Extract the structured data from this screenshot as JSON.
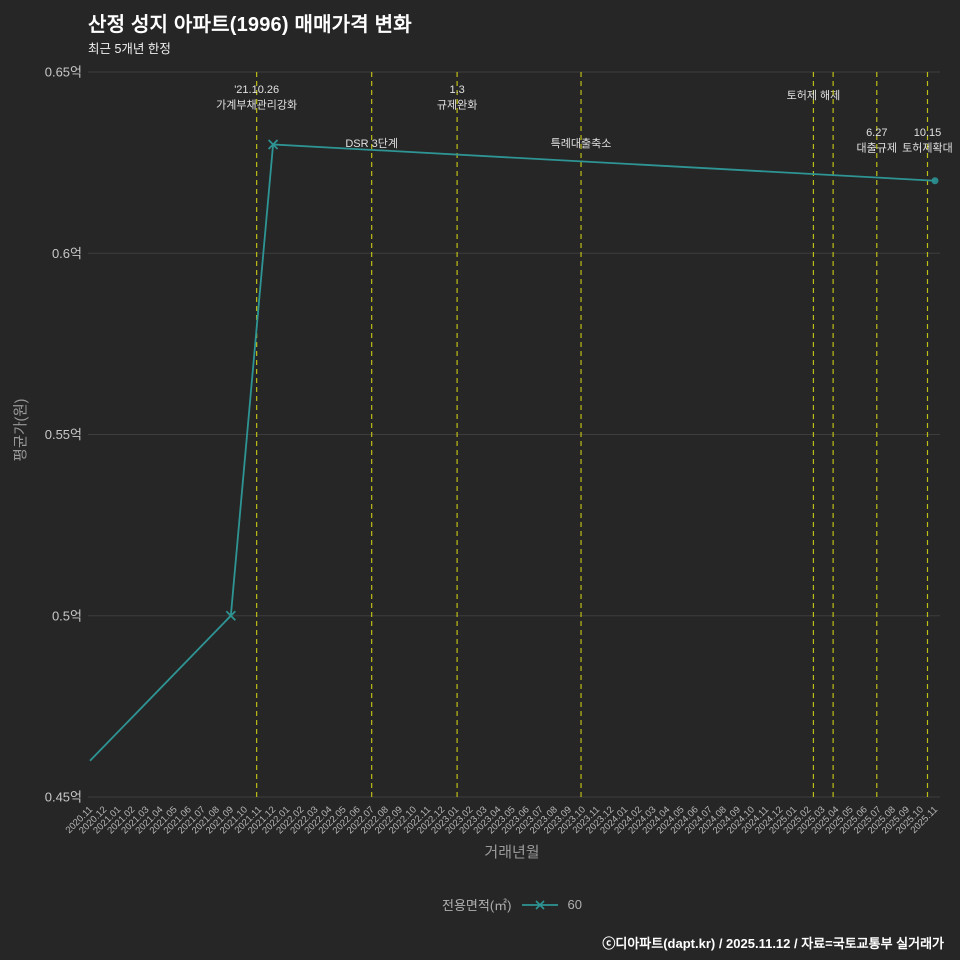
{
  "title": "산정 성지 아파트(1996) 매매가격 변화",
  "subtitle": "최근 5개년 한정",
  "footer": "ⓒ디아파트(dapt.kr) / 2025.11.12 / 자료=국토교통부 실거래가",
  "legend": {
    "label": "전용면적(㎡)",
    "series_name": "60"
  },
  "colors": {
    "background": "#262626",
    "line": "#2e9494",
    "event_line": "#bdbd17",
    "grid": "#3d3d3d",
    "title_text": "#ffffff",
    "tick_text": "#c8c8c8",
    "x_tick_text": "#b8b8b8",
    "axis_label_text": "#9a9a9a",
    "annotation_text": "#e0e0e0"
  },
  "chart_data": {
    "type": "line",
    "title": "산정 성지 아파트(1996) 매매가격 변화",
    "subtitle": "최근 5개년 한정",
    "xlabel": "거래년월",
    "ylabel": "평균가(원)",
    "ylim": [
      0.45,
      0.65
    ],
    "grid": "horizontal",
    "legend_position": "bottom-center",
    "y_ticks": [
      {
        "value": 0.65,
        "label": "0.65억"
      },
      {
        "value": 0.6,
        "label": "0.6억"
      },
      {
        "value": 0.55,
        "label": "0.55억"
      },
      {
        "value": 0.5,
        "label": "0.5억"
      },
      {
        "value": 0.45,
        "label": "0.45억"
      }
    ],
    "categories": [
      "2020.11",
      "2020.12",
      "2021.01",
      "2021.02",
      "2021.03",
      "2021.04",
      "2021.05",
      "2021.06",
      "2021.07",
      "2021.08",
      "2021.09",
      "2021.10",
      "2021.11",
      "2021.12",
      "2022.01",
      "2022.02",
      "2022.03",
      "2022.04",
      "2022.05",
      "2022.06",
      "2022.07",
      "2022.08",
      "2022.09",
      "2022.10",
      "2022.11",
      "2022.12",
      "2023.01",
      "2023.02",
      "2023.03",
      "2023.04",
      "2023.05",
      "2023.06",
      "2023.07",
      "2023.08",
      "2023.09",
      "2023.10",
      "2023.11",
      "2023.12",
      "2024.01",
      "2024.02",
      "2024.03",
      "2024.04",
      "2024.05",
      "2024.06",
      "2024.07",
      "2024.08",
      "2024.09",
      "2024.10",
      "2024.11",
      "2024.12",
      "2025.01",
      "2025.02",
      "2025.03",
      "2025.04",
      "2025.05",
      "2025.06",
      "2025.07",
      "2025.08",
      "2025.09",
      "2025.10",
      "2025.11"
    ],
    "series": [
      {
        "name": "60",
        "points": [
          {
            "x": "2020.11",
            "y": 0.46
          },
          {
            "x": "2021.09",
            "y": 0.5,
            "marker": "x"
          },
          {
            "x": "2021.12",
            "y": 0.63,
            "marker": "x"
          },
          {
            "x": "2025.11",
            "y": 0.62,
            "marker": "dot"
          }
        ]
      }
    ],
    "events": [
      {
        "date": "2021.10",
        "day": 26,
        "lines": [
          "'21.10.26",
          "가계부채관리강화"
        ],
        "label_top": 84
      },
      {
        "date": "2022.07",
        "day": 1,
        "lines": [
          "DSR 3단계"
        ],
        "label_top": 138
      },
      {
        "date": "2023.01",
        "day": 3,
        "lines": [
          "1.3",
          "규제완화"
        ],
        "label_top": 84
      },
      {
        "date": "2023.09",
        "day": 27,
        "lines": [
          "특례대출축소"
        ],
        "label_top": 138
      },
      {
        "date": "2025.02",
        "day": 12,
        "lines": [
          "토허제 해제"
        ],
        "label_top": 90
      },
      {
        "date": "2025.03",
        "day": 24,
        "lines": [],
        "label_top": 0
      },
      {
        "date": "2025.06",
        "day": 27,
        "lines": [
          "6.27",
          "대출규제"
        ],
        "label_top": 127
      },
      {
        "date": "2025.10",
        "day": 15,
        "lines": [
          "10.15",
          "토허제확대"
        ],
        "label_top": 127
      }
    ]
  }
}
